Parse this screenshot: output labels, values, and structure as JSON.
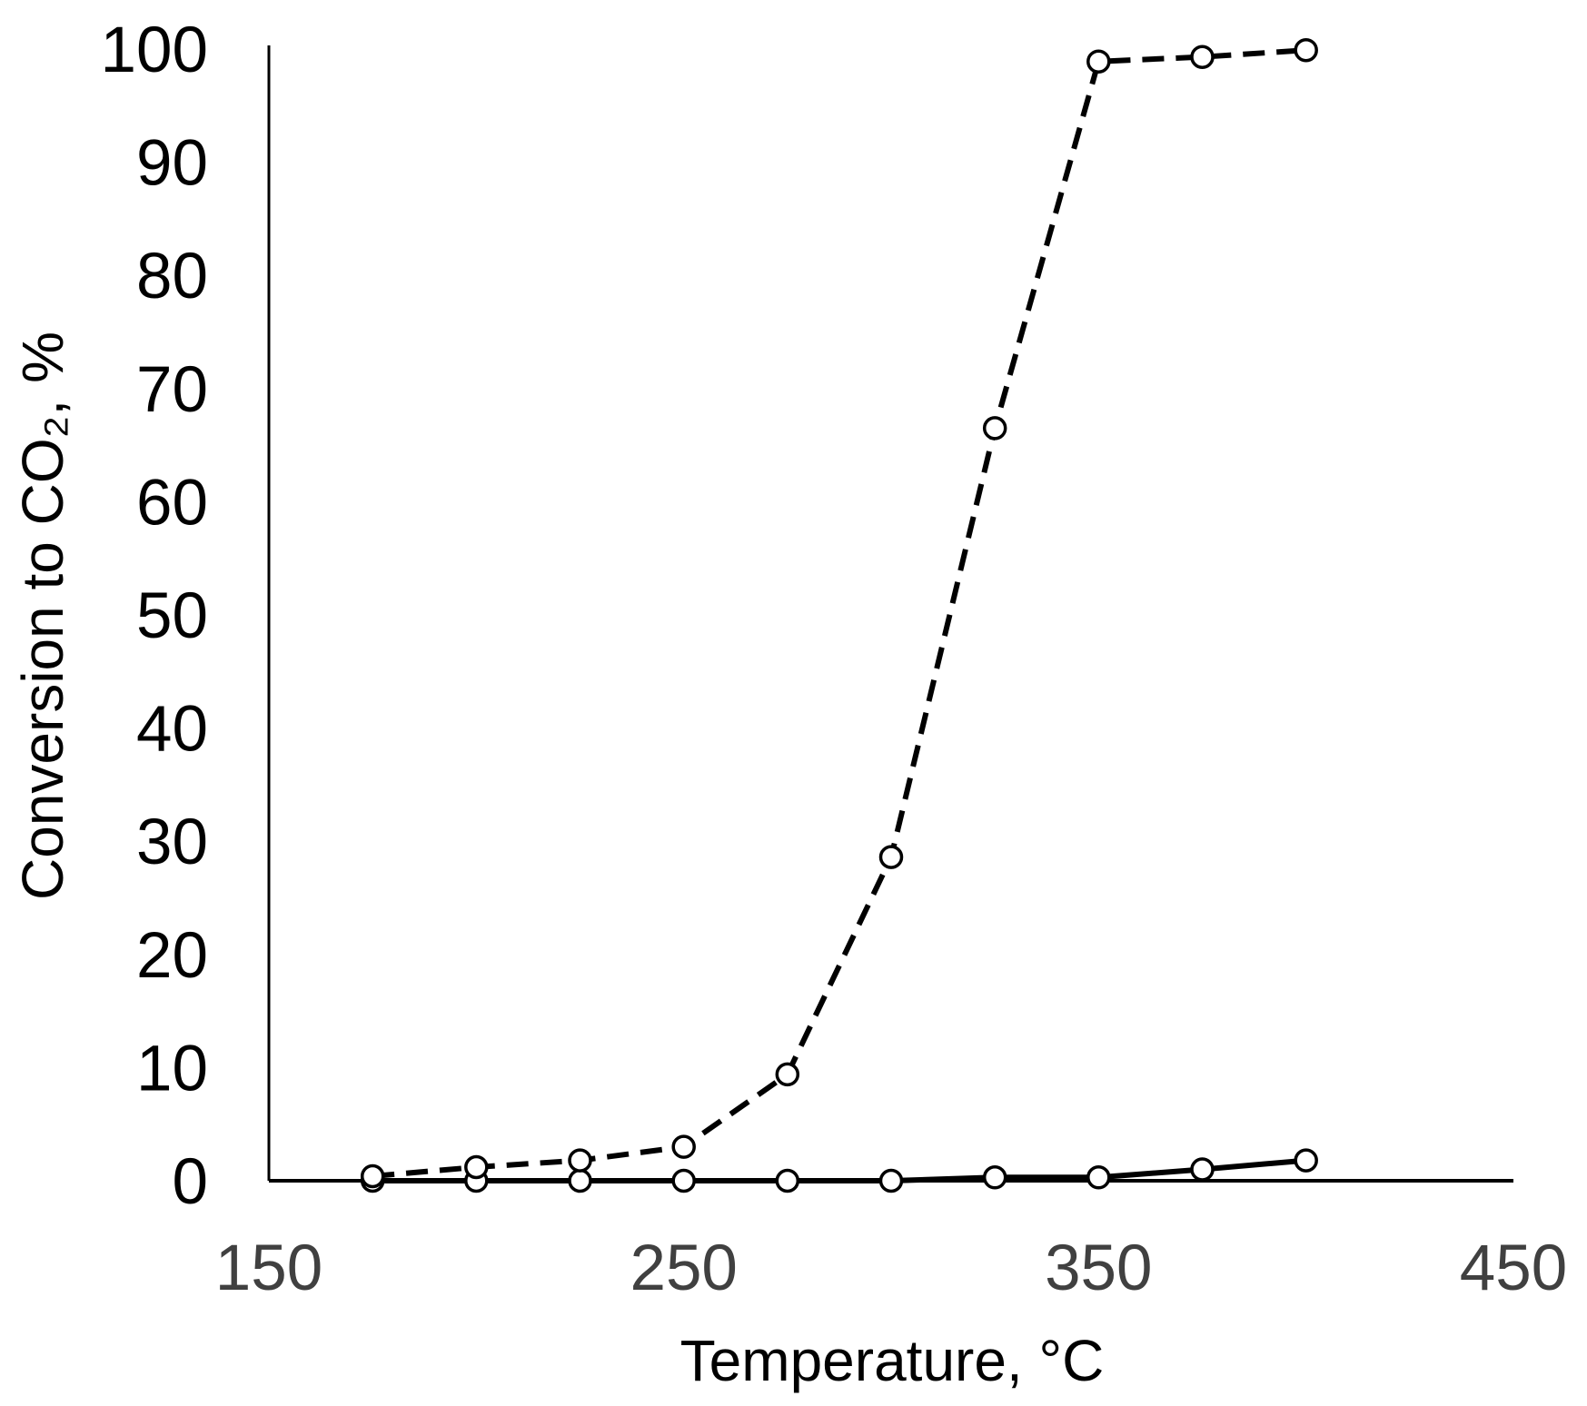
{
  "chart_data": {
    "type": "line",
    "xlabel": "Temperature, °C",
    "ylabel": "Conversion to CO₂, %",
    "xlim": [
      150,
      450
    ],
    "ylim": [
      0,
      100
    ],
    "x_ticks": [
      150,
      250,
      350,
      450
    ],
    "y_ticks": [
      0,
      10,
      20,
      30,
      40,
      50,
      60,
      70,
      80,
      90,
      100
    ],
    "grid": false,
    "x_tick_color": "#404040",
    "y_tick_color": "#000000",
    "x": [
      175,
      200,
      225,
      250,
      275,
      300,
      325,
      350,
      375,
      400
    ],
    "series": [
      {
        "values": [
          0,
          0,
          0,
          0,
          0,
          0,
          0.3,
          0.3,
          1.0,
          1.8
        ],
        "color": "#000000",
        "dashed": false
      },
      {
        "values": [
          0.4,
          1.2,
          1.8,
          3.0,
          9.4,
          28.6,
          66.5,
          98.9,
          99.3,
          99.9
        ],
        "color": "#000000",
        "dashed": true
      }
    ]
  }
}
